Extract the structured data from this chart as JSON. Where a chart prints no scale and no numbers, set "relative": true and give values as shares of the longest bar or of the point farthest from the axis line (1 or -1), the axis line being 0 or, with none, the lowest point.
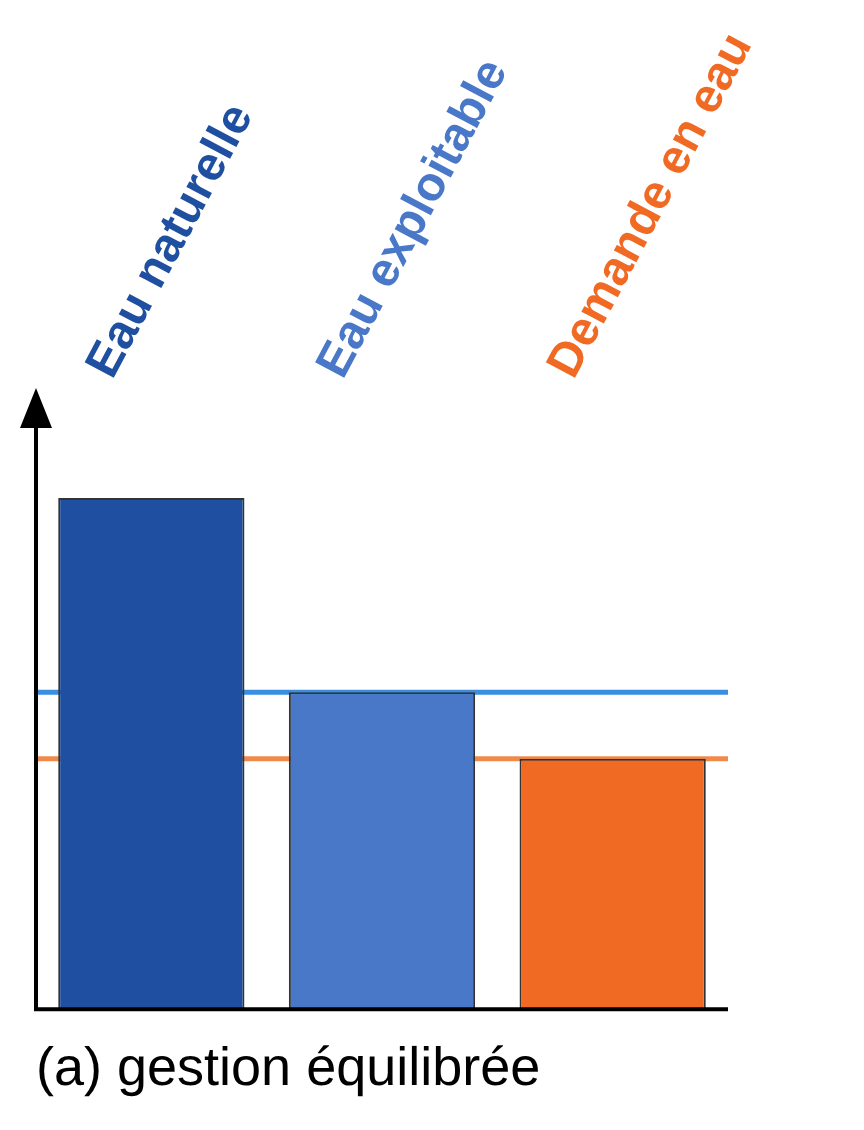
{
  "chart_data": {
    "type": "bar",
    "relative": true,
    "title": "(a) gestion équilibrée",
    "categories": [
      "Eau naturelle",
      "Eau exploitable",
      "Demande en eau"
    ],
    "values": [
      1,
      0.62,
      0.49
    ],
    "colors": [
      "#1f4fa0",
      "#4a78c8",
      "#f06a24"
    ],
    "ref_lines": [
      {
        "axis": "y",
        "value": 0.62,
        "color": "#3a8ee0"
      },
      {
        "axis": "y",
        "value": 0.49,
        "color": "#f08a4a"
      }
    ],
    "grid": false,
    "legend": false
  }
}
